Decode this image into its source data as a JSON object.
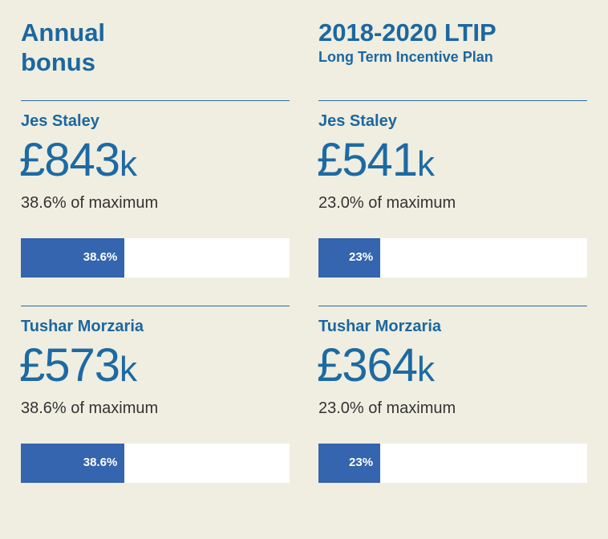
{
  "left": {
    "title_line1": "Annual",
    "title_line2": "bonus",
    "rows": [
      {
        "name": "Jes Staley",
        "amount": "£843",
        "unit": "k",
        "pct_text": "38.6% of maximum",
        "bar_label": "38.6%",
        "value": 38.6
      },
      {
        "name": "Tushar Morzaria",
        "amount": "£573",
        "unit": "k",
        "pct_text": "38.6% of maximum",
        "bar_label": "38.6%",
        "value": 38.6
      }
    ]
  },
  "right": {
    "title": "2018-2020 LTIP",
    "subtitle": "Long Term Incentive Plan",
    "rows": [
      {
        "name": "Jes Staley",
        "amount": "£541",
        "unit": "k",
        "pct_text": "23.0% of maximum",
        "bar_label": "23%",
        "value": 23
      },
      {
        "name": "Tushar Morzaria",
        "amount": "£364",
        "unit": "k",
        "pct_text": "23.0% of maximum",
        "bar_label": "23%",
        "value": 23
      }
    ]
  },
  "colors": {
    "background": "#efeee1",
    "text": "#1d6aa3",
    "bar_fill": "#3465ae",
    "bar_track": "#ffffff"
  },
  "chart_data": [
    {
      "type": "bar",
      "title": "Annual bonus",
      "categories": [
        "Jes Staley",
        "Tushar Morzaria"
      ],
      "values": [
        38.6,
        38.6
      ],
      "ylim": [
        0,
        100
      ]
    },
    {
      "type": "bar",
      "title": "2018-2020 LTIP",
      "categories": [
        "Jes Staley",
        "Tushar Morzaria"
      ],
      "values": [
        23,
        23
      ],
      "ylim": [
        0,
        100
      ]
    }
  ]
}
